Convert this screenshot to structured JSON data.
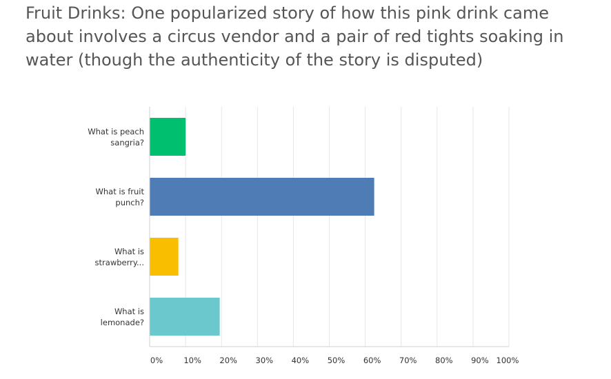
{
  "chart_data": {
    "type": "bar",
    "orientation": "horizontal",
    "title": "Fruit Drinks: One popularized story of how this pink drink came about involves a circus vendor and a pair of red tights soaking in water (though the authenticity of the story is disputed)",
    "categories": [
      [
        "What is peach",
        "sangria?"
      ],
      [
        "What is fruit",
        "punch?"
      ],
      [
        "What is",
        "strawberry..."
      ],
      [
        "What is",
        "lemonade?"
      ]
    ],
    "values": [
      10,
      62.5,
      8,
      19.5
    ],
    "colors": [
      "#00bf6f",
      "#507cb6",
      "#f9be00",
      "#6bc8cd"
    ],
    "xlim": [
      0,
      100
    ],
    "xticks": [
      "0%",
      "10%",
      "20%",
      "30%",
      "40%",
      "50%",
      "60%",
      "70%",
      "80%",
      "90%",
      "100%"
    ],
    "grid": true
  }
}
